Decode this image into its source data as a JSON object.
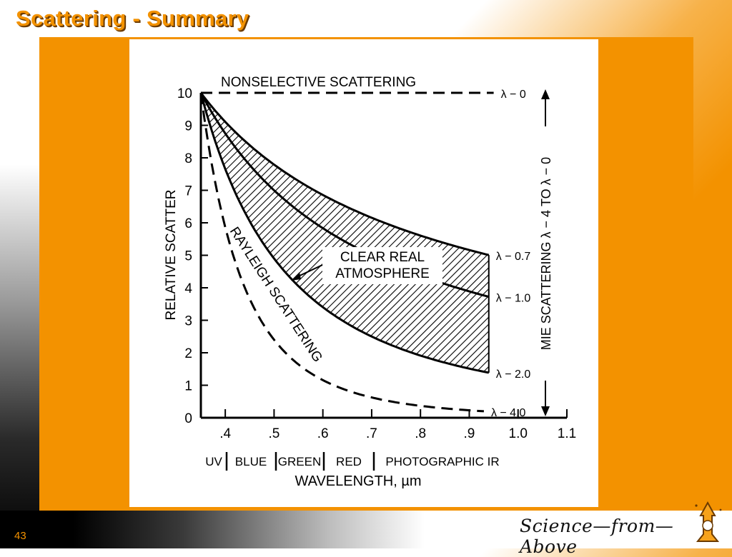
{
  "slide": {
    "title": "Scattering  - Summary",
    "page_number": "43",
    "logo_text": "Science—from—Above",
    "accent_color": "#f39200"
  },
  "chart_data": {
    "type": "line",
    "xlabel": "WAVELENGTH, µm",
    "ylabel": "RELATIVE SCATTER",
    "x_ticks": [
      ".4",
      ".5",
      ".6",
      ".7",
      ".8",
      ".9",
      "1.0",
      "1.1"
    ],
    "y_ticks": [
      "0",
      "1",
      "2",
      "3",
      "4",
      "5",
      "6",
      "7",
      "8",
      "9",
      "10"
    ],
    "xlim": [
      0.35,
      1.1
    ],
    "ylim": [
      0,
      10
    ],
    "bands": [
      "UV",
      "BLUE",
      "GREEN",
      "RED",
      "PHOTOGRAPHIC  IR"
    ],
    "series": [
      {
        "name": "NONSELECTIVE  SCATTERING",
        "label": "λ − 0",
        "exponent": 0,
        "style": "dashed"
      },
      {
        "label": "λ − 0.7",
        "exponent": 0.7,
        "style": "solid"
      },
      {
        "label": "λ − 1.0",
        "exponent": 1.0,
        "style": "solid"
      },
      {
        "label": "λ − 2.0",
        "exponent": 2.0,
        "style": "solid"
      },
      {
        "name": "RAYLEIGH  SCATTERING",
        "label": "λ − 4.0",
        "exponent": 4.0,
        "style": "dashed"
      }
    ],
    "x_start": 0.35,
    "x_end": 0.94,
    "y_at_start": 10,
    "shaded_region": {
      "label_line1": "CLEAR  REAL",
      "label_line2": "ATMOSPHERE",
      "between_exponents": [
        0.7,
        2.0
      ]
    },
    "mie_label": "MIE  SCATTERING  λ − 4  TO  λ − 0"
  }
}
